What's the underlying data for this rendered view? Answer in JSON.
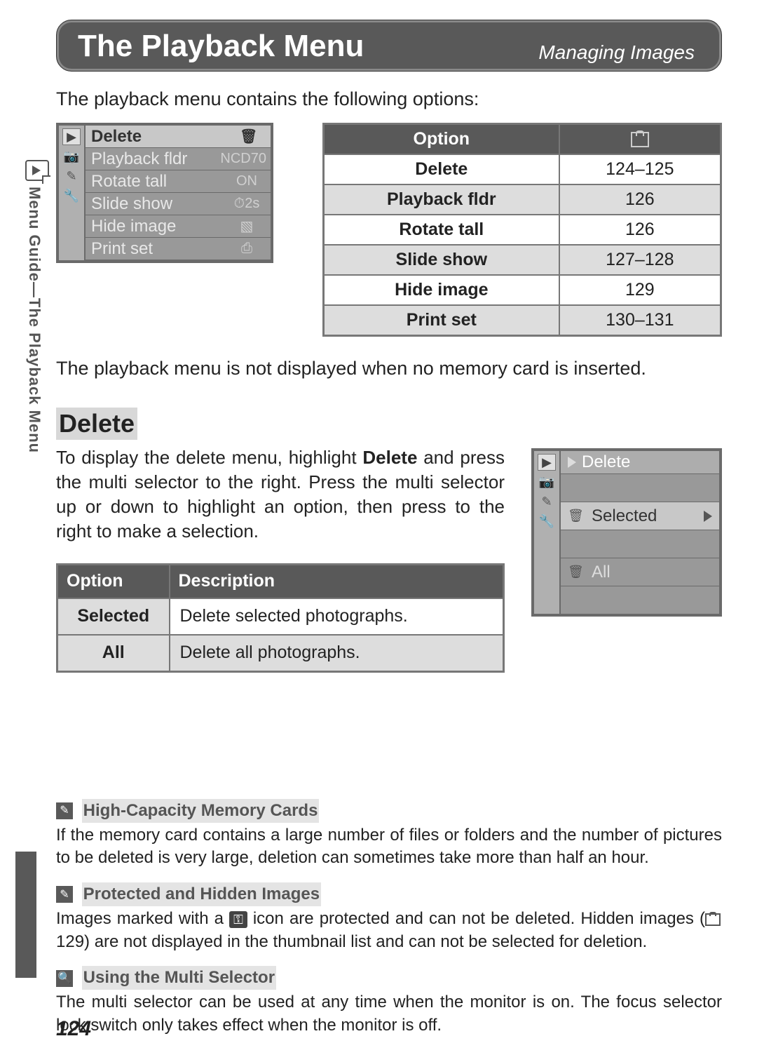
{
  "header": {
    "title": "The Playback Menu",
    "subtitle": "Managing Images"
  },
  "sidebar_label": "Menu Guide—The Playback Menu",
  "intro": "The playback menu contains the following options:",
  "camera_menu": {
    "items": [
      {
        "label": "Delete",
        "value_icon": "trash"
      },
      {
        "label": "Playback fldr",
        "value": "NCD70"
      },
      {
        "label": "Rotate tall",
        "value": "ON"
      },
      {
        "label": "Slide show",
        "value": "⏱2s"
      },
      {
        "label": "Hide image",
        "value_icon": "dots"
      },
      {
        "label": "Print set",
        "value_icon": "print"
      }
    ],
    "highlight_index": 0
  },
  "options_table": {
    "headers": {
      "option": "Option",
      "page": "page-icon"
    },
    "rows": [
      {
        "option": "Delete",
        "pages": "124–125"
      },
      {
        "option": "Playback fldr",
        "pages": "126"
      },
      {
        "option": "Rotate tall",
        "pages": "126"
      },
      {
        "option": "Slide show",
        "pages": "127–128"
      },
      {
        "option": "Hide image",
        "pages": "129"
      },
      {
        "option": "Print set",
        "pages": "130–131"
      }
    ]
  },
  "note_after_table": "The playback menu is not displayed when no memory card is inserted.",
  "delete_section": {
    "heading": "Delete",
    "body_1": "To display the delete menu, highlight ",
    "body_bold": "Delete",
    "body_2": " and press the multi selector to the right.  Press the multi selector up or down to highlight an option, then press to the right to make a selection.",
    "submenu": {
      "title": "Delete",
      "items": [
        {
          "label": "Selected",
          "selected": true
        },
        {
          "label": "All",
          "selected": false
        }
      ]
    },
    "desc_table": {
      "headers": {
        "option": "Option",
        "description": "Description"
      },
      "rows": [
        {
          "option": "Selected",
          "description": "Delete selected photographs."
        },
        {
          "option": "All",
          "description": "Delete all photographs."
        }
      ]
    }
  },
  "footnotes": [
    {
      "badge": "pencil",
      "heading": "High-Capacity Memory Cards",
      "body": "If the memory card contains a large number of files or folders and the number of pictures to be deleted is very large, deletion can sometimes take more than half an hour."
    },
    {
      "badge": "pencil",
      "heading": "Protected and Hidden Images",
      "body_pre": "Images marked with a ",
      "body_mid": " icon are protected and can not be deleted.  Hidden images (",
      "body_ref": " 129) are not displayed in the thumbnail list and can not be selected for deletion."
    },
    {
      "badge": "magnify",
      "heading": "Using the Multi Selector",
      "body": "The multi selector can be used at any time when the monitor is on.  The focus selector lock switch only takes effect when the monitor is off."
    }
  ],
  "page_number": "124",
  "colors": {
    "header_bg": "#595959",
    "header_text": "#ffffff",
    "table_border": "#777777",
    "row_shade": "#dddddd",
    "heading_highlight": "#d8d8d8"
  }
}
